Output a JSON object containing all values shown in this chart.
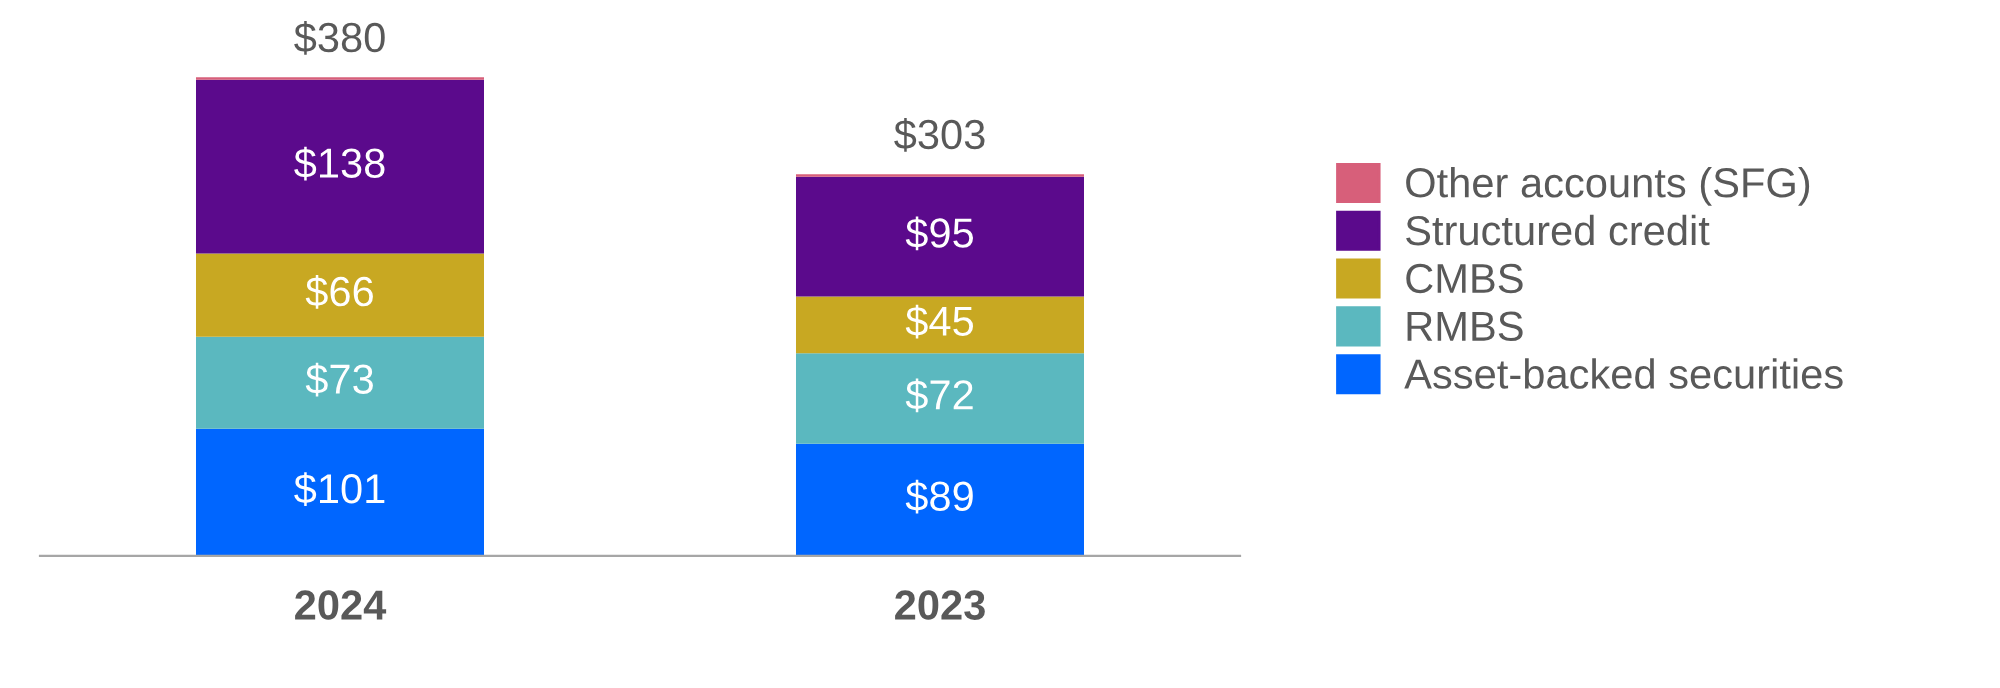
{
  "chart_data": {
    "type": "bar",
    "stacked": true,
    "categories": [
      "2024",
      "2023"
    ],
    "series": [
      {
        "name": "Asset-backed securities",
        "color": "#0066ff",
        "values": [
          101,
          89
        ],
        "value_labels": [
          "$101",
          "$89"
        ]
      },
      {
        "name": "RMBS",
        "color": "#5bb8bf",
        "values": [
          73,
          72
        ],
        "value_labels": [
          "$73",
          "$72"
        ]
      },
      {
        "name": "CMBS",
        "color": "#c8a822",
        "values": [
          66,
          45
        ],
        "value_labels": [
          "$66",
          "$45"
        ]
      },
      {
        "name": "Structured credit",
        "color": "#5b0a8c",
        "values": [
          138,
          95
        ],
        "value_labels": [
          "$138",
          "$95"
        ]
      },
      {
        "name": "Other accounts (SFG)",
        "color": "#d75f7a",
        "values": [
          2,
          2
        ],
        "value_labels": [
          null,
          null
        ]
      }
    ],
    "totals": [
      "$380",
      "$303"
    ],
    "legend": "right",
    "grid": false
  }
}
